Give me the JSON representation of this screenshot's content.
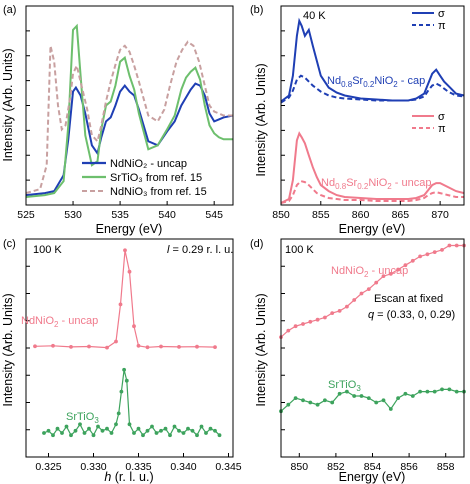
{
  "chart_data": [
    {
      "panel": "(a)",
      "type": "line",
      "xlabel": "Energy (eV)",
      "ylabel": "Intensity (Arb. Units)",
      "xlim": [
        525,
        547
      ],
      "xticks": [
        "525",
        "530",
        "535",
        "540",
        "545"
      ],
      "ylim": [
        0,
        1
      ],
      "legend": "bottom-right",
      "series": [
        {
          "name": "NdNiO₂ - uncap",
          "color": "#1f3fb4",
          "dash": "solid",
          "x": [
            525,
            527,
            528,
            529,
            529.5,
            530,
            530.3,
            530.8,
            531.3,
            532,
            532.6,
            533,
            533.5,
            534,
            534.5,
            535,
            535.5,
            536,
            536.5,
            537,
            538,
            539,
            540,
            540.8,
            541.5,
            542,
            542.5,
            543,
            543.5,
            544,
            544.5,
            545,
            545.5,
            546,
            547
          ],
          "y": [
            0.05,
            0.06,
            0.07,
            0.15,
            0.33,
            0.57,
            0.59,
            0.55,
            0.46,
            0.3,
            0.26,
            0.34,
            0.42,
            0.44,
            0.5,
            0.57,
            0.6,
            0.57,
            0.55,
            0.48,
            0.32,
            0.3,
            0.37,
            0.42,
            0.5,
            0.54,
            0.58,
            0.61,
            0.6,
            0.55,
            0.46,
            0.42,
            0.43,
            0.44,
            0.45
          ]
        },
        {
          "name": "SrTiO₃ from ref. 15",
          "color": "#6dbf6d",
          "dash": "solid",
          "x": [
            525,
            527,
            528,
            529,
            529.5,
            530,
            530.4,
            530.8,
            531.3,
            532,
            532.6,
            533,
            533.5,
            534,
            534.5,
            535,
            535.5,
            536,
            536.5,
            537,
            538,
            539,
            540,
            540.8,
            541.5,
            542,
            542.5,
            543,
            543.5,
            544,
            544.5,
            545,
            545.5,
            546,
            547
          ],
          "y": [
            0.04,
            0.05,
            0.06,
            0.12,
            0.4,
            0.88,
            0.9,
            0.65,
            0.35,
            0.2,
            0.22,
            0.38,
            0.5,
            0.52,
            0.6,
            0.72,
            0.74,
            0.65,
            0.58,
            0.46,
            0.28,
            0.3,
            0.38,
            0.45,
            0.58,
            0.64,
            0.67,
            0.69,
            0.63,
            0.5,
            0.4,
            0.36,
            0.34,
            0.33,
            0.33
          ]
        },
        {
          "name": "NdNiO₃ from ref. 15",
          "color": "#c8a0a0",
          "dash": "dashed",
          "x": [
            525,
            526.5,
            527.2,
            527.6,
            528,
            528.4,
            528.8,
            529.2,
            529.7,
            530,
            530.4,
            530.9,
            531.5,
            532,
            532.6,
            533,
            533.5,
            534,
            534.6,
            535,
            535.5,
            536,
            536.5,
            537,
            538,
            539,
            539.7,
            540.3,
            541,
            541.6,
            542.2,
            542.8,
            543.4,
            544,
            544.5,
            545,
            545.5,
            546,
            547
          ],
          "y": [
            0.06,
            0.08,
            0.2,
            0.8,
            0.72,
            0.5,
            0.38,
            0.4,
            0.54,
            0.66,
            0.7,
            0.6,
            0.48,
            0.35,
            0.32,
            0.4,
            0.52,
            0.62,
            0.72,
            0.78,
            0.8,
            0.77,
            0.7,
            0.62,
            0.45,
            0.42,
            0.48,
            0.6,
            0.72,
            0.78,
            0.82,
            0.8,
            0.72,
            0.6,
            0.5,
            0.47,
            0.46,
            0.45,
            0.45
          ]
        }
      ]
    },
    {
      "panel": "(b)",
      "type": "line",
      "xlabel": "Energy (eV)",
      "ylabel": "Intensity (Arb. Units)",
      "xlim": [
        850,
        873
      ],
      "xticks": [
        "850",
        "855",
        "860",
        "865",
        "870"
      ],
      "ylim": [
        0,
        2
      ],
      "annotation": "40 K",
      "labels": {
        "cap_prefix": "Nd",
        "cap_sub1": "0.8",
        "cap_mid": "Sr",
        "cap_sub2": "0.2",
        "cap_suffix": "NiO",
        "cap_sub3": "2",
        "cap_tail": " - cap",
        "uncap_prefix": "Nd",
        "uncap_sub1": "0.8",
        "uncap_mid": "Sr",
        "uncap_sub2": "0.2",
        "uncap_suffix": "NiO",
        "uncap_sub3": "2",
        "uncap_tail": " - uncap"
      },
      "legends": [
        {
          "placement": "top-right",
          "entries": [
            {
              "name": "σ",
              "dash": "solid"
            },
            {
              "name": "π",
              "dash": "dashed"
            }
          ],
          "color": "#1f3fb4"
        },
        {
          "placement": "middle-right",
          "entries": [
            {
              "name": "σ",
              "dash": "solid"
            },
            {
              "name": "π",
              "dash": "dashed"
            }
          ],
          "color": "#f07a8c"
        }
      ],
      "series": [
        {
          "name": "cap σ",
          "color": "#1f3fb4",
          "dash": "solid",
          "offset": 1,
          "x": [
            850,
            851,
            851.5,
            852,
            852.3,
            852.6,
            853,
            853.5,
            854,
            854.5,
            855,
            856,
            857,
            858,
            860,
            862,
            864,
            866,
            867,
            868,
            868.5,
            869,
            869.5,
            870,
            870.5,
            871,
            872,
            873
          ],
          "y": [
            0.04,
            0.1,
            0.3,
            0.7,
            0.85,
            0.8,
            0.7,
            0.76,
            0.6,
            0.45,
            0.3,
            0.18,
            0.13,
            0.1,
            0.07,
            0.06,
            0.05,
            0.05,
            0.07,
            0.12,
            0.22,
            0.32,
            0.36,
            0.3,
            0.24,
            0.2,
            0.12,
            0.1
          ]
        },
        {
          "name": "cap π",
          "color": "#1f3fb4",
          "dash": "dashed",
          "offset": 1,
          "x": [
            850,
            851,
            851.5,
            852,
            852.5,
            853,
            853.5,
            854,
            854.5,
            855,
            856,
            857,
            858,
            860,
            862,
            864,
            866,
            867,
            868,
            868.5,
            869,
            869.5,
            870,
            870.5,
            871,
            872,
            873
          ],
          "y": [
            0.03,
            0.08,
            0.15,
            0.26,
            0.3,
            0.28,
            0.24,
            0.2,
            0.17,
            0.14,
            0.1,
            0.08,
            0.07,
            0.06,
            0.05,
            0.05,
            0.05,
            0.06,
            0.09,
            0.15,
            0.2,
            0.22,
            0.2,
            0.17,
            0.14,
            0.1,
            0.09
          ]
        },
        {
          "name": "uncap σ",
          "color": "#f07a8c",
          "dash": "solid",
          "offset": 0,
          "x": [
            850,
            851,
            851.5,
            852,
            852.3,
            852.6,
            853,
            853.5,
            854,
            854.5,
            855,
            856,
            857,
            858,
            860,
            862,
            864,
            866,
            867,
            868,
            868.5,
            869,
            869.5,
            870,
            870.5,
            871,
            872,
            873
          ],
          "y": [
            0.02,
            0.06,
            0.25,
            0.65,
            0.72,
            0.68,
            0.62,
            0.5,
            0.38,
            0.28,
            0.2,
            0.14,
            0.1,
            0.08,
            0.07,
            0.06,
            0.06,
            0.06,
            0.07,
            0.1,
            0.15,
            0.2,
            0.22,
            0.22,
            0.2,
            0.18,
            0.14,
            0.12
          ]
        },
        {
          "name": "uncap π",
          "color": "#f07a8c",
          "dash": "dashed",
          "offset": 0,
          "x": [
            850,
            851,
            851.5,
            852,
            852.5,
            853,
            853.5,
            854,
            854.5,
            855,
            856,
            857,
            858,
            860,
            862,
            864,
            866,
            867,
            868,
            868.5,
            869,
            869.5,
            870,
            870.5,
            871,
            872,
            873
          ],
          "y": [
            0.02,
            0.04,
            0.1,
            0.2,
            0.24,
            0.23,
            0.2,
            0.16,
            0.12,
            0.1,
            0.07,
            0.06,
            0.05,
            0.05,
            0.04,
            0.04,
            0.04,
            0.05,
            0.07,
            0.1,
            0.12,
            0.13,
            0.12,
            0.11,
            0.1,
            0.08,
            0.08
          ]
        }
      ]
    },
    {
      "panel": "(c)",
      "type": "line",
      "xlabel_prefix": "h",
      "xlabel": " (r. l. u.)",
      "ylabel": "Intensity (Arb. Units)",
      "xlim": [
        0.3225,
        0.3455
      ],
      "xticks": [
        "0.325",
        "0.330",
        "0.335",
        "0.340",
        "0.345"
      ],
      "ylim": [
        0,
        1
      ],
      "annotation": "100 K",
      "annotation2_prefix": "l",
      "annotation2": " = 0.29 r. l. u.",
      "labels": {
        "nd_prefix": "NdNiO",
        "nd_sub": "2",
        "nd_tail": " - uncap",
        "sr_prefix": "SrTiO",
        "sr_sub": "3"
      },
      "series": [
        {
          "name": "NdNiO₂ - uncap",
          "color": "#f07a8c",
          "x": [
            0.3235,
            0.3255,
            0.3275,
            0.3295,
            0.3315,
            0.3325,
            0.333,
            0.3335,
            0.334,
            0.3345,
            0.335,
            0.336,
            0.3375,
            0.3395,
            0.3415,
            0.3435
          ],
          "y": [
            0.508,
            0.51,
            0.505,
            0.507,
            0.502,
            0.53,
            0.7,
            0.948,
            0.85,
            0.6,
            0.51,
            0.503,
            0.507,
            0.505,
            0.506,
            0.504
          ]
        },
        {
          "name": "SrTiO₃",
          "color": "#3da35d",
          "x": [
            0.3245,
            0.325,
            0.3255,
            0.326,
            0.3265,
            0.327,
            0.3275,
            0.328,
            0.3285,
            0.329,
            0.3295,
            0.33,
            0.3305,
            0.331,
            0.3315,
            0.332,
            0.3325,
            0.3328,
            0.3331,
            0.3334,
            0.3337,
            0.334,
            0.3345,
            0.335,
            0.3355,
            0.336,
            0.3365,
            0.337,
            0.3375,
            0.338,
            0.3385,
            0.339,
            0.3395,
            0.34,
            0.3405,
            0.341,
            0.3415,
            0.342,
            0.3425,
            0.343,
            0.3435,
            0.344
          ],
          "y": [
            0.11,
            0.12,
            0.1,
            0.13,
            0.11,
            0.14,
            0.1,
            0.12,
            0.15,
            0.11,
            0.13,
            0.1,
            0.14,
            0.12,
            0.13,
            0.11,
            0.15,
            0.2,
            0.3,
            0.4,
            0.35,
            0.15,
            0.11,
            0.13,
            0.1,
            0.12,
            0.14,
            0.11,
            0.12,
            0.13,
            0.1,
            0.14,
            0.12,
            0.11,
            0.13,
            0.12,
            0.1,
            0.14,
            0.11,
            0.13,
            0.12,
            0.1
          ]
        }
      ]
    },
    {
      "panel": "(d)",
      "type": "line",
      "xlabel": "Energy (eV)",
      "ylabel": "Intensity (Arb. Units)",
      "xlim": [
        849,
        859
      ],
      "xticks": [
        "850",
        "852",
        "854",
        "856",
        "858"
      ],
      "ylim": [
        0,
        1
      ],
      "annotation": "100 K",
      "annotation2": "Escan at fixed",
      "annotation3_prefix": "q",
      "annotation3": " = (0.33, 0, 0.29)",
      "labels": {
        "nd_prefix": "NdNiO",
        "nd_sub": "2",
        "nd_tail": " - uncap",
        "sr_prefix": "SrTiO",
        "sr_sub": "3"
      },
      "series": [
        {
          "name": "NdNiO₂ - uncap",
          "color": "#f07a8c",
          "x": [
            849,
            849.4,
            849.8,
            850.2,
            850.6,
            851,
            851.4,
            851.8,
            852.2,
            852.6,
            853,
            853.4,
            853.8,
            854.2,
            854.6,
            855,
            855.4,
            855.8,
            856.2,
            856.6,
            857,
            857.4,
            857.8,
            858.2,
            858.6,
            859
          ],
          "y": [
            0.55,
            0.58,
            0.6,
            0.61,
            0.62,
            0.63,
            0.64,
            0.66,
            0.67,
            0.69,
            0.72,
            0.75,
            0.77,
            0.8,
            0.83,
            0.84,
            0.86,
            0.88,
            0.9,
            0.92,
            0.93,
            0.94,
            0.95,
            0.97,
            0.97,
            0.97
          ]
        },
        {
          "name": "SrTiO₃",
          "color": "#3da35d",
          "x": [
            849,
            849.4,
            849.8,
            850.2,
            850.6,
            851,
            851.4,
            851.8,
            852.2,
            852.6,
            853,
            853.4,
            853.8,
            854.2,
            854.6,
            855,
            855.4,
            855.8,
            856.2,
            856.6,
            857,
            857.4,
            857.8,
            858.2,
            858.6,
            859
          ],
          "y": [
            0.21,
            0.24,
            0.27,
            0.26,
            0.25,
            0.24,
            0.26,
            0.25,
            0.29,
            0.3,
            0.28,
            0.28,
            0.27,
            0.25,
            0.26,
            0.22,
            0.27,
            0.29,
            0.28,
            0.3,
            0.3,
            0.3,
            0.31,
            0.31,
            0.3,
            0.3
          ]
        }
      ]
    }
  ]
}
